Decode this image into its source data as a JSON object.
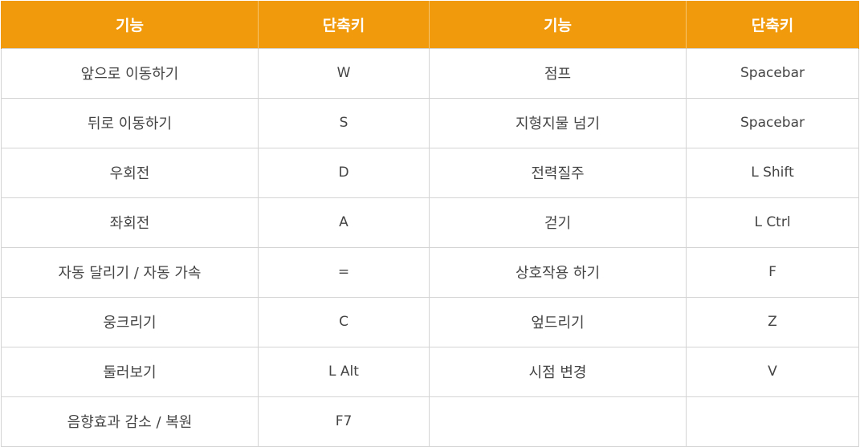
{
  "table": {
    "headers": [
      "기능",
      "단축키",
      "기능",
      "단축키"
    ],
    "rows": [
      {
        "func_left": "앞으로 이동하기",
        "key_left": "W",
        "func_right": "점프",
        "key_right": "Spacebar"
      },
      {
        "func_left": "뒤로 이동하기",
        "key_left": "S",
        "func_right": "지형지물 넘기",
        "key_right": "Spacebar"
      },
      {
        "func_left": "우회전",
        "key_left": "D",
        "func_right": "전력질주",
        "key_right": "L Shift"
      },
      {
        "func_left": "좌회전",
        "key_left": "A",
        "func_right": "걷기",
        "key_right": "L Ctrl"
      },
      {
        "func_left": "자동 달리기 / 자동 가속",
        "key_left": "=",
        "func_right": "상호작용 하기",
        "key_right": "F"
      },
      {
        "func_left": "웅크리기",
        "key_left": "C",
        "func_right": "엎드리기",
        "key_right": "Z"
      },
      {
        "func_left": "둘러보기",
        "key_left": "L Alt",
        "func_right": "시점 변경",
        "key_right": "V"
      },
      {
        "func_left": "음향효과 감소 / 복원",
        "key_left": "F7",
        "func_right": "",
        "key_right": ""
      }
    ]
  },
  "colors": {
    "header_bg": "#f09a0c",
    "header_text": "#ffffff",
    "cell_text": "#444444",
    "border": "#d4d4d4"
  }
}
